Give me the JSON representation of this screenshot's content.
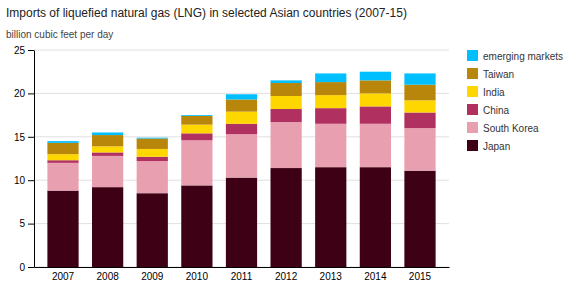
{
  "chart_data": {
    "type": "bar",
    "title": "Imports of liquefied natural gas (LNG) in selected Asian countries (2007-15)",
    "y_label": "billion cubic feet per day",
    "categories": [
      "2007",
      "2008",
      "2009",
      "2010",
      "2011",
      "2012",
      "2013",
      "2014",
      "2015"
    ],
    "series": [
      {
        "name": "Japan",
        "color": "#3d0015",
        "values": [
          8.8,
          9.2,
          8.5,
          9.4,
          10.3,
          11.4,
          11.5,
          11.5,
          11.1
        ]
      },
      {
        "name": "South Korea",
        "color": "#e8a0b0",
        "values": [
          3.2,
          3.6,
          3.7,
          5.2,
          5.0,
          5.3,
          5.0,
          5.0,
          4.9
        ]
      },
      {
        "name": "China",
        "color": "#b03060",
        "values": [
          0.3,
          0.4,
          0.5,
          0.8,
          1.2,
          1.5,
          1.8,
          2.0,
          1.8
        ]
      },
      {
        "name": "India",
        "color": "#ffd700",
        "values": [
          0.7,
          0.7,
          0.9,
          1.0,
          1.4,
          1.5,
          1.5,
          1.5,
          1.4
        ]
      },
      {
        "name": "Taiwan",
        "color": "#b8860b",
        "values": [
          1.3,
          1.3,
          1.2,
          1.0,
          1.4,
          1.5,
          1.5,
          1.5,
          1.8
        ]
      },
      {
        "name": "emerging markets",
        "color": "#00bfff",
        "values": [
          0.2,
          0.3,
          0.1,
          0.1,
          0.6,
          0.3,
          1.0,
          1.0,
          1.3
        ]
      }
    ],
    "ylim": [
      0,
      25
    ],
    "yticks": [
      0,
      5,
      10,
      15,
      20,
      25
    ],
    "stacked": true,
    "grid": true,
    "legend": "right"
  }
}
